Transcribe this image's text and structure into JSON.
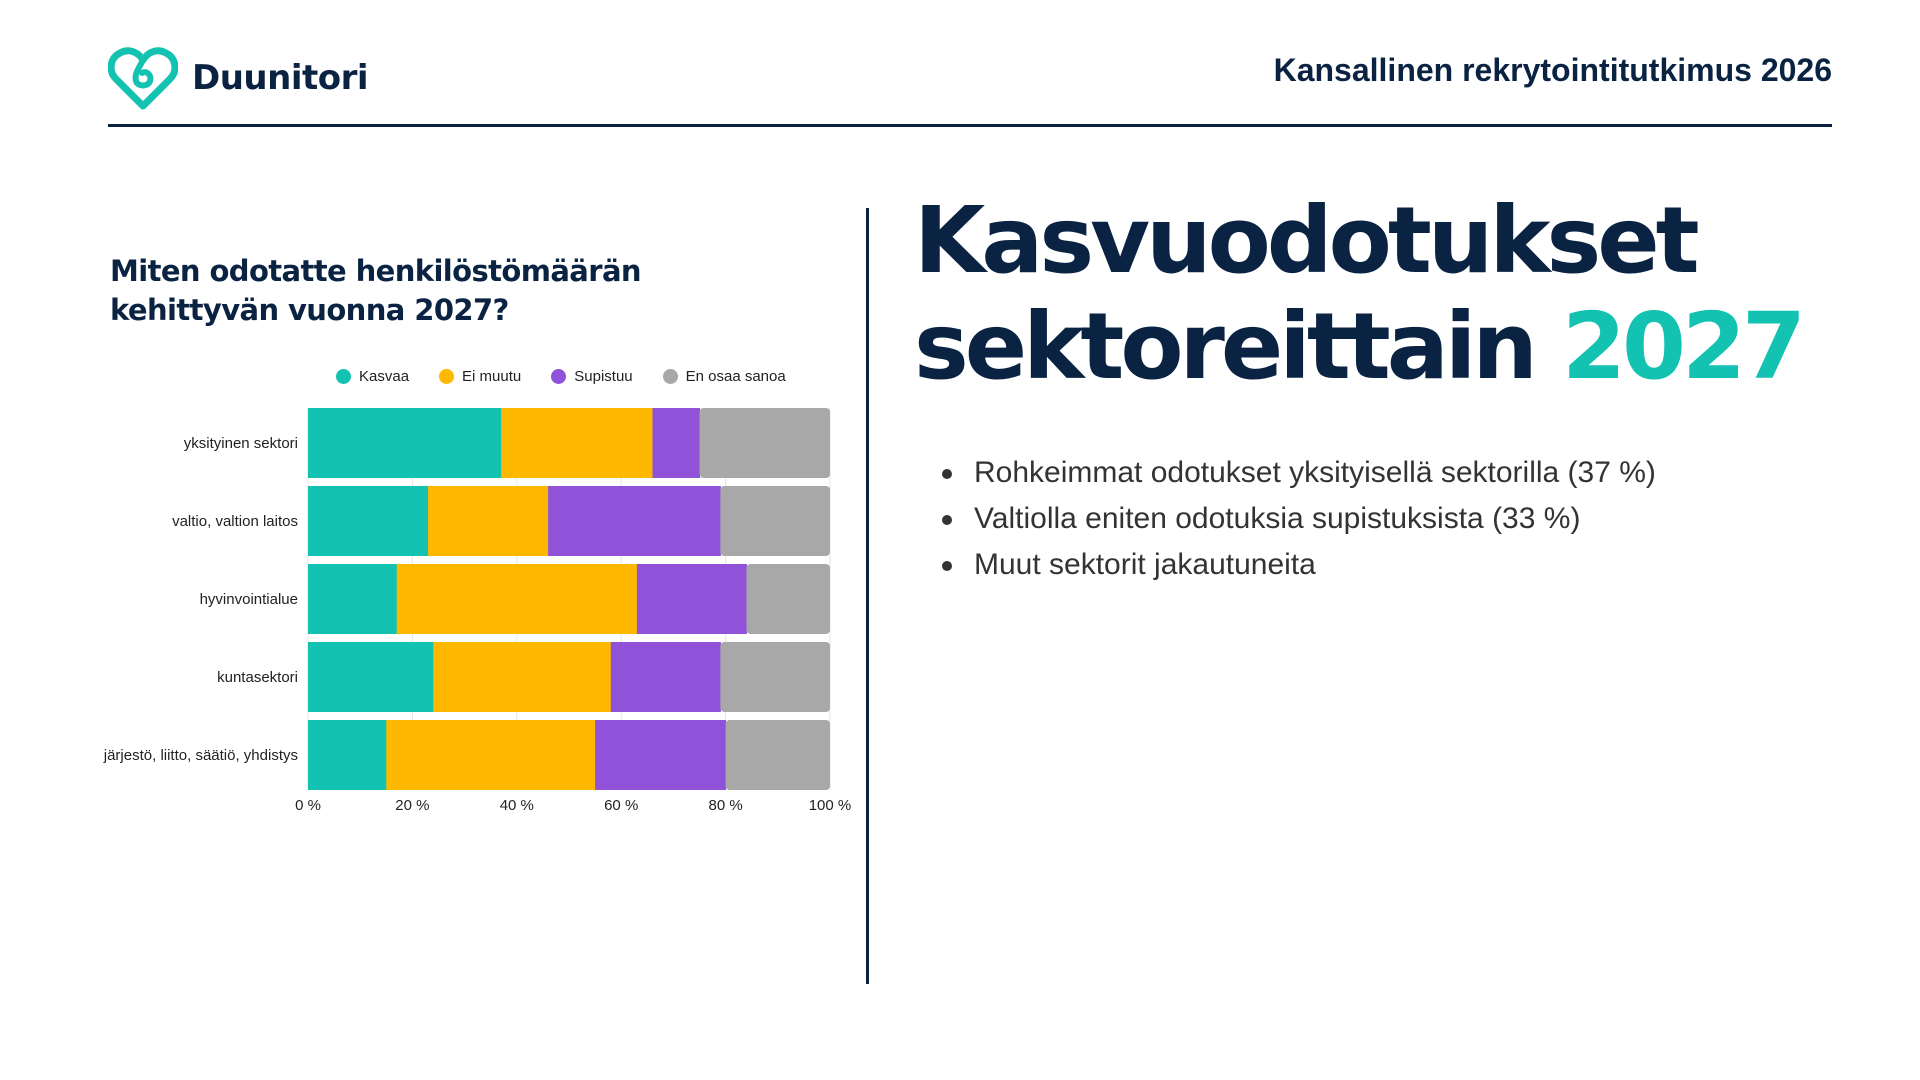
{
  "brand": {
    "name": "Duunitori",
    "logo_icon": "heart-knot-icon",
    "accent": "#13c2b0",
    "navy": "#0b2342"
  },
  "header": {
    "study_title": "Kansallinen rekrytointitutkimus 2026"
  },
  "headline": {
    "line1": "Kasvuodotukset",
    "line2_main": "sektoreittain",
    "line2_accent": "2027"
  },
  "bullets": [
    "Rohkeimmat odotukset yksityisellä sektorilla (37 %)",
    "Valtiolla eniten odotuksia supistuksista (33 %)",
    "Muut sektorit jakautuneita"
  ],
  "chart_data": {
    "type": "bar",
    "orientation": "horizontal",
    "stacked": true,
    "title": "Miten odotatte henkilöstömäärän kehittyvän vuonna 2027?",
    "legend_position": "top",
    "categories": [
      "yksityinen sektori",
      "valtio, valtion laitos",
      "hyvinvointialue",
      "kuntasektori",
      "järjestö, liitto, säätiö, yhdistys"
    ],
    "series": [
      {
        "name": "Kasvaa",
        "color": "#13c2b0",
        "values": [
          37,
          23,
          17,
          24,
          15
        ]
      },
      {
        "name": "Ei muutu",
        "color": "#ffb800",
        "values": [
          29,
          23,
          46,
          34,
          40
        ]
      },
      {
        "name": "Supistuu",
        "color": "#8f52d9",
        "values": [
          9,
          33,
          21,
          21,
          25
        ]
      },
      {
        "name": "En osaa sanoa",
        "color": "#a8a8a8",
        "values": [
          25,
          21,
          16,
          21,
          20
        ]
      }
    ],
    "xlim": [
      0,
      100
    ],
    "x_ticks": [
      "0 %",
      "20 %",
      "40 %",
      "60 %",
      "80 %",
      "100 %"
    ],
    "grid": true
  }
}
